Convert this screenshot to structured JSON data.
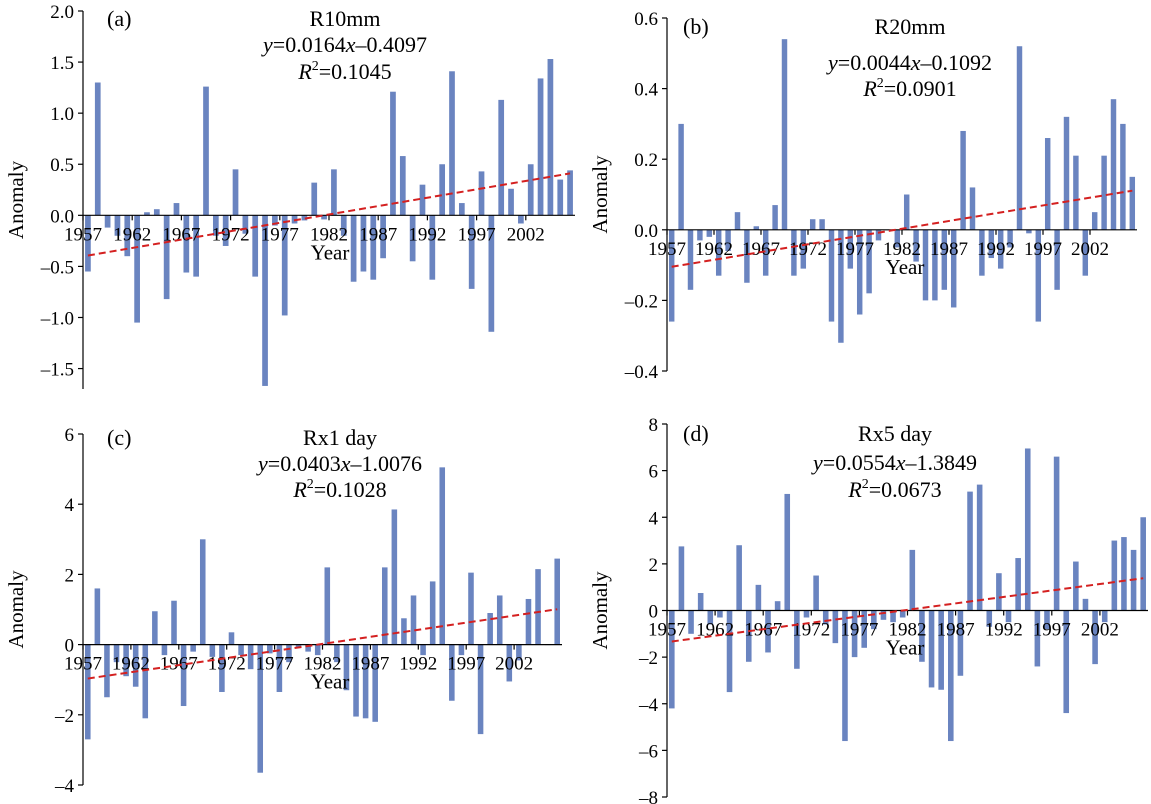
{
  "chart_data": [
    {
      "type": "bar",
      "panel_label": "(a)",
      "title": "R10mm",
      "equation": {
        "y": "y",
        "mid": "=0.0164",
        "x": "x",
        "rest": "–0.4097"
      },
      "r2": {
        "r": "R",
        "sup": "2",
        "val": "=0.1045"
      },
      "xlabel": "Year",
      "ylabel": "Anomaly",
      "ylim": [
        -1.7,
        2.0
      ],
      "yticks": [
        "2.0",
        "1.5",
        "1.0",
        "0.5",
        "0.0",
        "–0.5",
        "–1.0",
        "–1.5"
      ],
      "ytick_values": [
        2.0,
        1.5,
        1.0,
        0.5,
        0.0,
        -0.5,
        -1.0,
        -1.5
      ],
      "xticks": [
        "1957",
        "1962",
        "1967",
        "1972",
        "1977",
        "1982",
        "1987",
        "1992",
        "1997",
        "2002"
      ],
      "year_start": 1957,
      "values": [
        -0.55,
        1.3,
        -0.12,
        -0.2,
        -0.4,
        -1.05,
        0.03,
        0.06,
        -0.82,
        0.12,
        -0.56,
        -0.6,
        1.26,
        -0.2,
        -0.3,
        0.45,
        -0.18,
        -0.6,
        -1.67,
        -0.1,
        -0.98,
        -0.08,
        -0.05,
        0.32,
        -0.04,
        0.45,
        -0.2,
        -0.65,
        -0.55,
        -0.63,
        -0.42,
        1.21,
        0.58,
        -0.45,
        0.3,
        -0.63,
        0.5,
        1.41,
        0.12,
        -0.72,
        0.43,
        -1.14,
        1.13,
        0.26,
        -0.08,
        0.5,
        1.34,
        1.53,
        0.35,
        0.44
      ],
      "trend": {
        "slope": 0.0164,
        "intercept": -0.4097
      }
    },
    {
      "type": "bar",
      "panel_label": "(b)",
      "title": "R20mm",
      "equation": {
        "y": "y",
        "mid": "=0.0044",
        "x": "x",
        "rest": "–0.1092"
      },
      "r2": {
        "r": "R",
        "sup": "2",
        "val": "=0.0901"
      },
      "xlabel": "Year",
      "ylabel": "Anomaly",
      "ylim": [
        -0.4,
        0.6
      ],
      "yticks": [
        "0.6",
        "0.4",
        "0.2",
        "0.0",
        "–0.2",
        "–0.4"
      ],
      "ytick_values": [
        0.6,
        0.4,
        0.2,
        0.0,
        -0.2,
        -0.4
      ],
      "xticks": [
        "1957",
        "1962",
        "1967",
        "1972",
        "1977",
        "1982",
        "1987",
        "1992",
        "1997",
        "2002"
      ],
      "year_start": 1957,
      "values": [
        -0.26,
        0.3,
        -0.17,
        -0.03,
        -0.02,
        -0.13,
        -0.06,
        0.05,
        -0.15,
        0.01,
        -0.13,
        0.07,
        0.54,
        -0.13,
        -0.11,
        0.03,
        0.03,
        -0.26,
        -0.32,
        -0.11,
        -0.24,
        -0.18,
        -0.03,
        0.0,
        -0.05,
        0.1,
        -0.09,
        -0.2,
        -0.2,
        -0.17,
        -0.22,
        0.28,
        0.12,
        -0.13,
        -0.08,
        -0.11,
        -0.05,
        0.52,
        -0.01,
        -0.26,
        0.26,
        -0.17,
        0.32,
        0.21,
        -0.13,
        0.05,
        0.21,
        0.37,
        0.3,
        0.15
      ],
      "trend": {
        "slope": 0.0044,
        "intercept": -0.1092
      }
    },
    {
      "type": "bar",
      "panel_label": "(c)",
      "title": "Rx1 day",
      "equation": {
        "y": "y",
        "mid": "=0.0403",
        "x": "x",
        "rest": "–1.0076"
      },
      "r2": {
        "r": "R",
        "sup": "2",
        "val": "=0.1028"
      },
      "xlabel": "Year",
      "ylabel": "Anomaly",
      "ylim": [
        -4,
        6
      ],
      "yticks": [
        "6",
        "4",
        "2",
        "0",
        "–2",
        "–4"
      ],
      "ytick_values": [
        6,
        4,
        2,
        0,
        -2,
        -4
      ],
      "xticks": [
        "1957",
        "1962",
        "1967",
        "1972",
        "1977",
        "1982",
        "1987",
        "1992",
        "1997",
        "2002"
      ],
      "year_start": 1957,
      "values": [
        -2.7,
        1.6,
        -1.5,
        -0.5,
        -0.9,
        -1.2,
        -2.1,
        0.95,
        -0.3,
        1.25,
        -1.75,
        -0.2,
        3.0,
        -0.35,
        -1.35,
        0.35,
        -0.3,
        -0.7,
        -3.65,
        -0.25,
        -1.35,
        -0.5,
        -0.1,
        -0.2,
        -0.3,
        2.2,
        -0.5,
        -1.3,
        -2.05,
        -2.1,
        -2.2,
        2.2,
        3.85,
        0.75,
        1.4,
        -0.3,
        1.8,
        5.05,
        -1.6,
        -0.3,
        2.05,
        -2.55,
        0.9,
        1.4,
        -1.05,
        -0.45,
        1.3,
        2.15,
        0.0,
        2.45
      ],
      "trend": {
        "slope": 0.0403,
        "intercept": -1.0076
      }
    },
    {
      "type": "bar",
      "panel_label": "(d)",
      "title": "Rx5 day",
      "equation": {
        "y": "y",
        "mid": "=0.0554",
        "x": "x",
        "rest": "–1.3849"
      },
      "r2": {
        "r": "R",
        "sup": "2",
        "val": "=0.0673"
      },
      "xlabel": "Year",
      "ylabel": "Anomaly",
      "ylim": [
        -8,
        8
      ],
      "yticks": [
        "8",
        "6",
        "4",
        "2",
        "0",
        "–2",
        "–4",
        "–6",
        "–8"
      ],
      "ytick_values": [
        8,
        6,
        4,
        2,
        0,
        -2,
        -4,
        -6,
        -8
      ],
      "xticks": [
        "1957",
        "1962",
        "1967",
        "1972",
        "1977",
        "1982",
        "1987",
        "1992",
        "1997",
        "2002"
      ],
      "year_start": 1957,
      "values": [
        -4.2,
        2.75,
        -1.0,
        0.75,
        -0.6,
        -0.3,
        -3.5,
        2.8,
        -2.2,
        1.1,
        -1.8,
        0.4,
        5.0,
        -2.5,
        -0.3,
        1.5,
        -0.6,
        -1.4,
        -5.6,
        -2.0,
        -1.6,
        -0.8,
        -0.4,
        -0.5,
        -0.3,
        2.6,
        -2.2,
        -3.3,
        -3.4,
        -5.6,
        -2.8,
        5.1,
        5.4,
        -0.7,
        1.6,
        -0.5,
        2.25,
        6.95,
        -2.4,
        -0.8,
        6.6,
        -4.4,
        2.1,
        0.5,
        -2.3,
        -0.5,
        3.0,
        3.15,
        2.6,
        4.0
      ],
      "trend": {
        "slope": 0.0554,
        "intercept": -1.3849
      }
    }
  ]
}
